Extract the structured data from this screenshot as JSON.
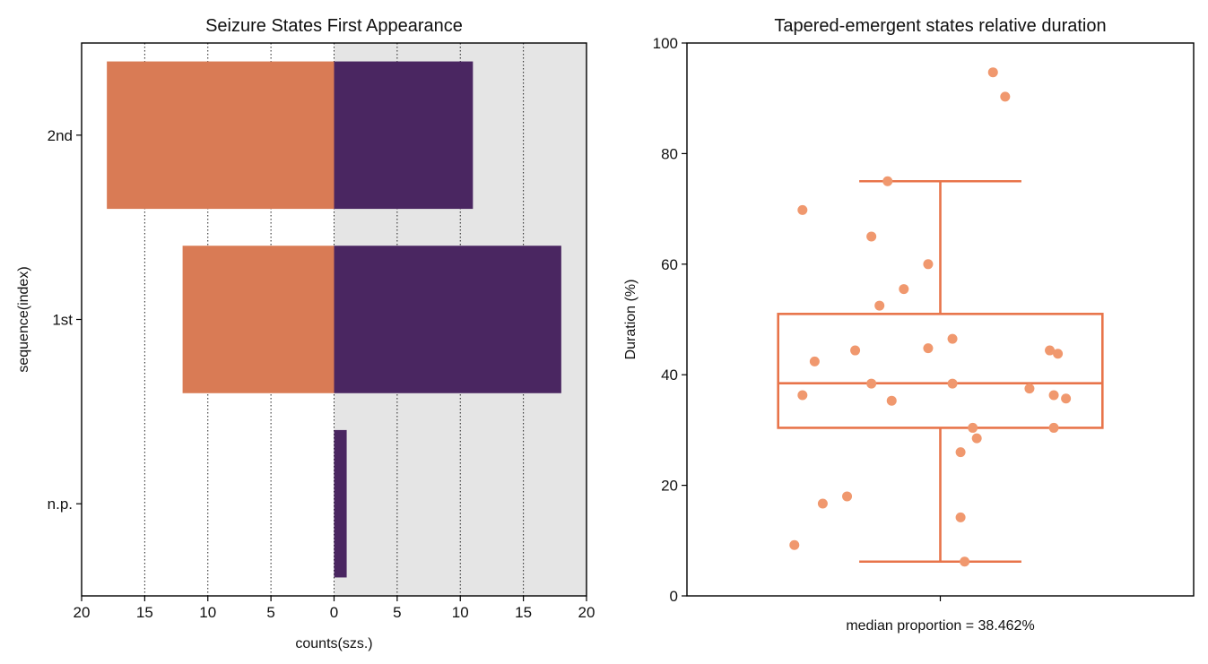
{
  "chart_data": [
    {
      "type": "bar",
      "orientation": "horizontal-diverging",
      "title": "Seizure States First Appearance",
      "xlabel": "counts(szs.)",
      "ylabel": "sequence(index)",
      "categories": [
        "2nd",
        "1st",
        "n.p."
      ],
      "series": [
        {
          "name": "left",
          "color": "#d97b55",
          "values": [
            18,
            12,
            0
          ]
        },
        {
          "name": "right",
          "color": "#4a2661",
          "values": [
            11,
            18,
            1
          ]
        }
      ],
      "xlim": [
        -20,
        20
      ],
      "xticks": [
        -20,
        -15,
        -10,
        -5,
        0,
        5,
        10,
        15,
        20
      ],
      "xtick_labels": [
        "20",
        "15",
        "10",
        "5",
        "0",
        "5",
        "10",
        "15",
        "20"
      ],
      "grid": "vertical dotted",
      "right_half_shaded": true,
      "shade_color": "#e5e5e5"
    },
    {
      "type": "box",
      "title": "Tapered-emergent states relative duration",
      "ylabel": "Duration (%)",
      "xlabel": "median proportion = 38.462%",
      "ylim": [
        0,
        100
      ],
      "yticks": [
        0,
        20,
        40,
        60,
        80,
        100
      ],
      "box": {
        "whisker_low": 6.2,
        "q1": 30.4,
        "median": 38.462,
        "q3": 51.0,
        "whisker_high": 75.0
      },
      "box_color": "#e8744a",
      "point_color": "#f0986e",
      "points": [
        {
          "jitter": -0.36,
          "value": 9.2
        },
        {
          "jitter": -0.29,
          "value": 16.7
        },
        {
          "jitter": -0.23,
          "value": 18.0
        },
        {
          "jitter": -0.34,
          "value": 36.3
        },
        {
          "jitter": -0.31,
          "value": 42.4
        },
        {
          "jitter": -0.21,
          "value": 44.4
        },
        {
          "jitter": -0.17,
          "value": 38.4
        },
        {
          "jitter": -0.12,
          "value": 35.3
        },
        {
          "jitter": -0.15,
          "value": 52.5
        },
        {
          "jitter": -0.09,
          "value": 55.5
        },
        {
          "jitter": -0.17,
          "value": 65.0
        },
        {
          "jitter": -0.13,
          "value": 75.0
        },
        {
          "jitter": -0.34,
          "value": 69.8
        },
        {
          "jitter": -0.03,
          "value": 60.0
        },
        {
          "jitter": -0.03,
          "value": 44.8
        },
        {
          "jitter": 0.03,
          "value": 46.5
        },
        {
          "jitter": 0.03,
          "value": 38.4
        },
        {
          "jitter": 0.08,
          "value": 30.4
        },
        {
          "jitter": 0.09,
          "value": 28.5
        },
        {
          "jitter": 0.05,
          "value": 26.0
        },
        {
          "jitter": 0.05,
          "value": 14.2
        },
        {
          "jitter": 0.06,
          "value": 6.2
        },
        {
          "jitter": 0.22,
          "value": 37.5
        },
        {
          "jitter": 0.27,
          "value": 44.4
        },
        {
          "jitter": 0.29,
          "value": 43.8
        },
        {
          "jitter": 0.28,
          "value": 36.3
        },
        {
          "jitter": 0.31,
          "value": 35.7
        },
        {
          "jitter": 0.28,
          "value": 30.4
        },
        {
          "jitter": 0.16,
          "value": 90.3
        },
        {
          "jitter": 0.13,
          "value": 94.7
        }
      ]
    }
  ]
}
